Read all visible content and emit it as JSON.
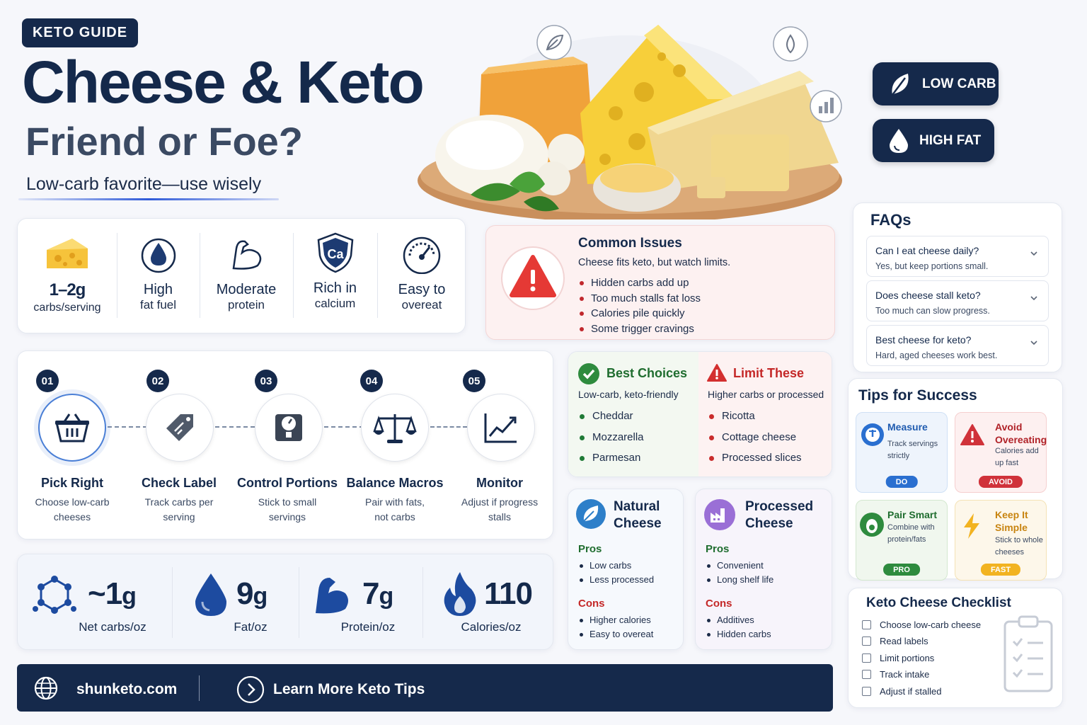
{
  "header": {
    "tag": "KETO GUIDE",
    "title": "Cheese & Keto",
    "subtitle": "Friend or Foe?",
    "tagline": "Low-carb favorite—use wisely"
  },
  "pills": [
    {
      "label": "LOW CARB",
      "icon": "leaf-icon"
    },
    {
      "label": "HIGH FAT",
      "icon": "drop-icon"
    }
  ],
  "facts": [
    {
      "value": "1–2g",
      "label": "carbs/serving",
      "icon": "cheese-icon"
    },
    {
      "value": "High",
      "label": "fat fuel",
      "icon": "drop-icon"
    },
    {
      "value": "Moderate",
      "label": "protein",
      "icon": "muscle-icon"
    },
    {
      "value": "Rich in",
      "label": "calcium",
      "icon": "calcium-shield-icon",
      "symbol": "Ca"
    },
    {
      "value": "Easy to",
      "label": "overeat",
      "icon": "gauge-icon"
    }
  ],
  "issues": {
    "title": "Common Issues",
    "subtitle": "Cheese fits keto, but watch limits.",
    "items": [
      "Hidden carbs add up",
      "Too much stalls fat loss",
      "Calories pile quickly",
      "Some trigger cravings"
    ]
  },
  "steps": [
    {
      "num": "01",
      "title": "Pick Right",
      "desc1": "Choose low-carb",
      "desc2": "cheeses",
      "icon": "basket-icon"
    },
    {
      "num": "02",
      "title": "Check Label",
      "desc1": "Track carbs per",
      "desc2": "serving",
      "icon": "tag-icon"
    },
    {
      "num": "03",
      "title": "Control Portions",
      "desc1": "Stick to small",
      "desc2": "servings",
      "icon": "scale-icon"
    },
    {
      "num": "04",
      "title": "Balance Macros",
      "desc1": "Pair with fats,",
      "desc2": "not carbs",
      "icon": "balance-icon"
    },
    {
      "num": "05",
      "title": "Monitor",
      "desc1": "Adjust if progress",
      "desc2": "stalls",
      "icon": "trend-icon"
    }
  ],
  "stats": [
    {
      "value": "~1",
      "unit": "g",
      "label": "Net carbs/oz",
      "icon": "molecule-icon"
    },
    {
      "value": "9",
      "unit": "g",
      "label": "Fat/oz",
      "icon": "drop-icon"
    },
    {
      "value": "7",
      "unit": "g",
      "label": "Protein/oz",
      "icon": "muscle-icon"
    },
    {
      "value": "110",
      "unit": "",
      "label": "Calories/oz",
      "icon": "flame-icon"
    }
  ],
  "best": {
    "title": "Best Choices",
    "subtitle": "Low-carb, keto-friendly",
    "items": [
      "Cheddar",
      "Mozzarella",
      "Parmesan"
    ]
  },
  "limit": {
    "title": "Limit These",
    "subtitle": "Higher carbs or processed",
    "items": [
      "Ricotta",
      "Cottage cheese",
      "Processed slices"
    ]
  },
  "natural": {
    "title1": "Natural",
    "title2": "Cheese",
    "pros_label": "Pros",
    "pros": [
      "Low carbs",
      "Less processed"
    ],
    "cons_label": "Cons",
    "cons": [
      "Higher calories",
      "Easy to overeat"
    ]
  },
  "processed": {
    "title1": "Processed",
    "title2": "Cheese",
    "pros_label": "Pros",
    "pros": [
      "Convenient",
      "Long shelf life"
    ],
    "cons_label": "Cons",
    "cons": [
      "Additives",
      "Hidden carbs"
    ]
  },
  "faq": {
    "title": "FAQs",
    "items": [
      {
        "q": "Can I eat cheese daily?",
        "a": "Yes, but keep portions small."
      },
      {
        "q": "Does cheese stall keto?",
        "a": "Too much can slow progress."
      },
      {
        "q": "Best cheese for keto?",
        "a": "Hard, aged cheeses work best."
      }
    ]
  },
  "tips": {
    "title": "Tips for Success",
    "items": [
      {
        "t1": "Measure",
        "t2": "",
        "d1": "Track servings",
        "d2": "strictly",
        "badge": "DO",
        "color": "#2a6fd0"
      },
      {
        "t1": "Avoid",
        "t2": "Overeating",
        "d1": "Calories add",
        "d2": "up fast",
        "badge": "AVOID",
        "color": "#d0323a"
      },
      {
        "t1": "Pair Smart",
        "t2": "",
        "d1": "Combine with",
        "d2": "protein/fats",
        "badge": "PRO",
        "color": "#2e8b3e"
      },
      {
        "t1": "Keep It",
        "t2": "Simple",
        "d1": "Stick to whole",
        "d2": "cheeses",
        "badge": "FAST",
        "color": "#e3a41f"
      }
    ]
  },
  "checklist": {
    "title": "Keto Cheese Checklist",
    "items": [
      "Choose low-carb cheese",
      "Read labels",
      "Limit portions",
      "Track intake",
      "Adjust if stalled"
    ]
  },
  "footer": {
    "site": "shunketo.com",
    "cta": "Learn More Keto Tips"
  }
}
